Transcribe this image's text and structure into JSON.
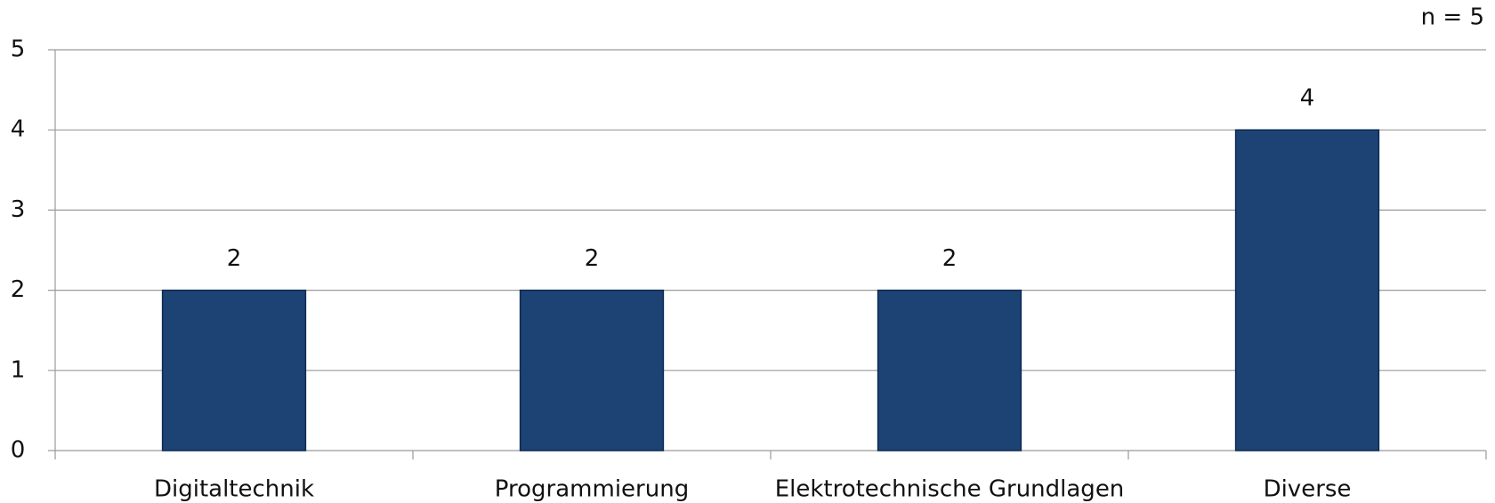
{
  "chart_data": {
    "type": "bar",
    "annotation": "n = 5",
    "categories": [
      "Digitaltechnik",
      "Programmierung",
      "Elektrotechnische Grundlagen",
      "Diverse"
    ],
    "values": [
      2,
      2,
      2,
      4
    ],
    "color": "#1c4373",
    "ylim": [
      0,
      5
    ],
    "yticks": [
      0,
      1,
      2,
      3,
      4,
      5
    ],
    "grid": true
  }
}
